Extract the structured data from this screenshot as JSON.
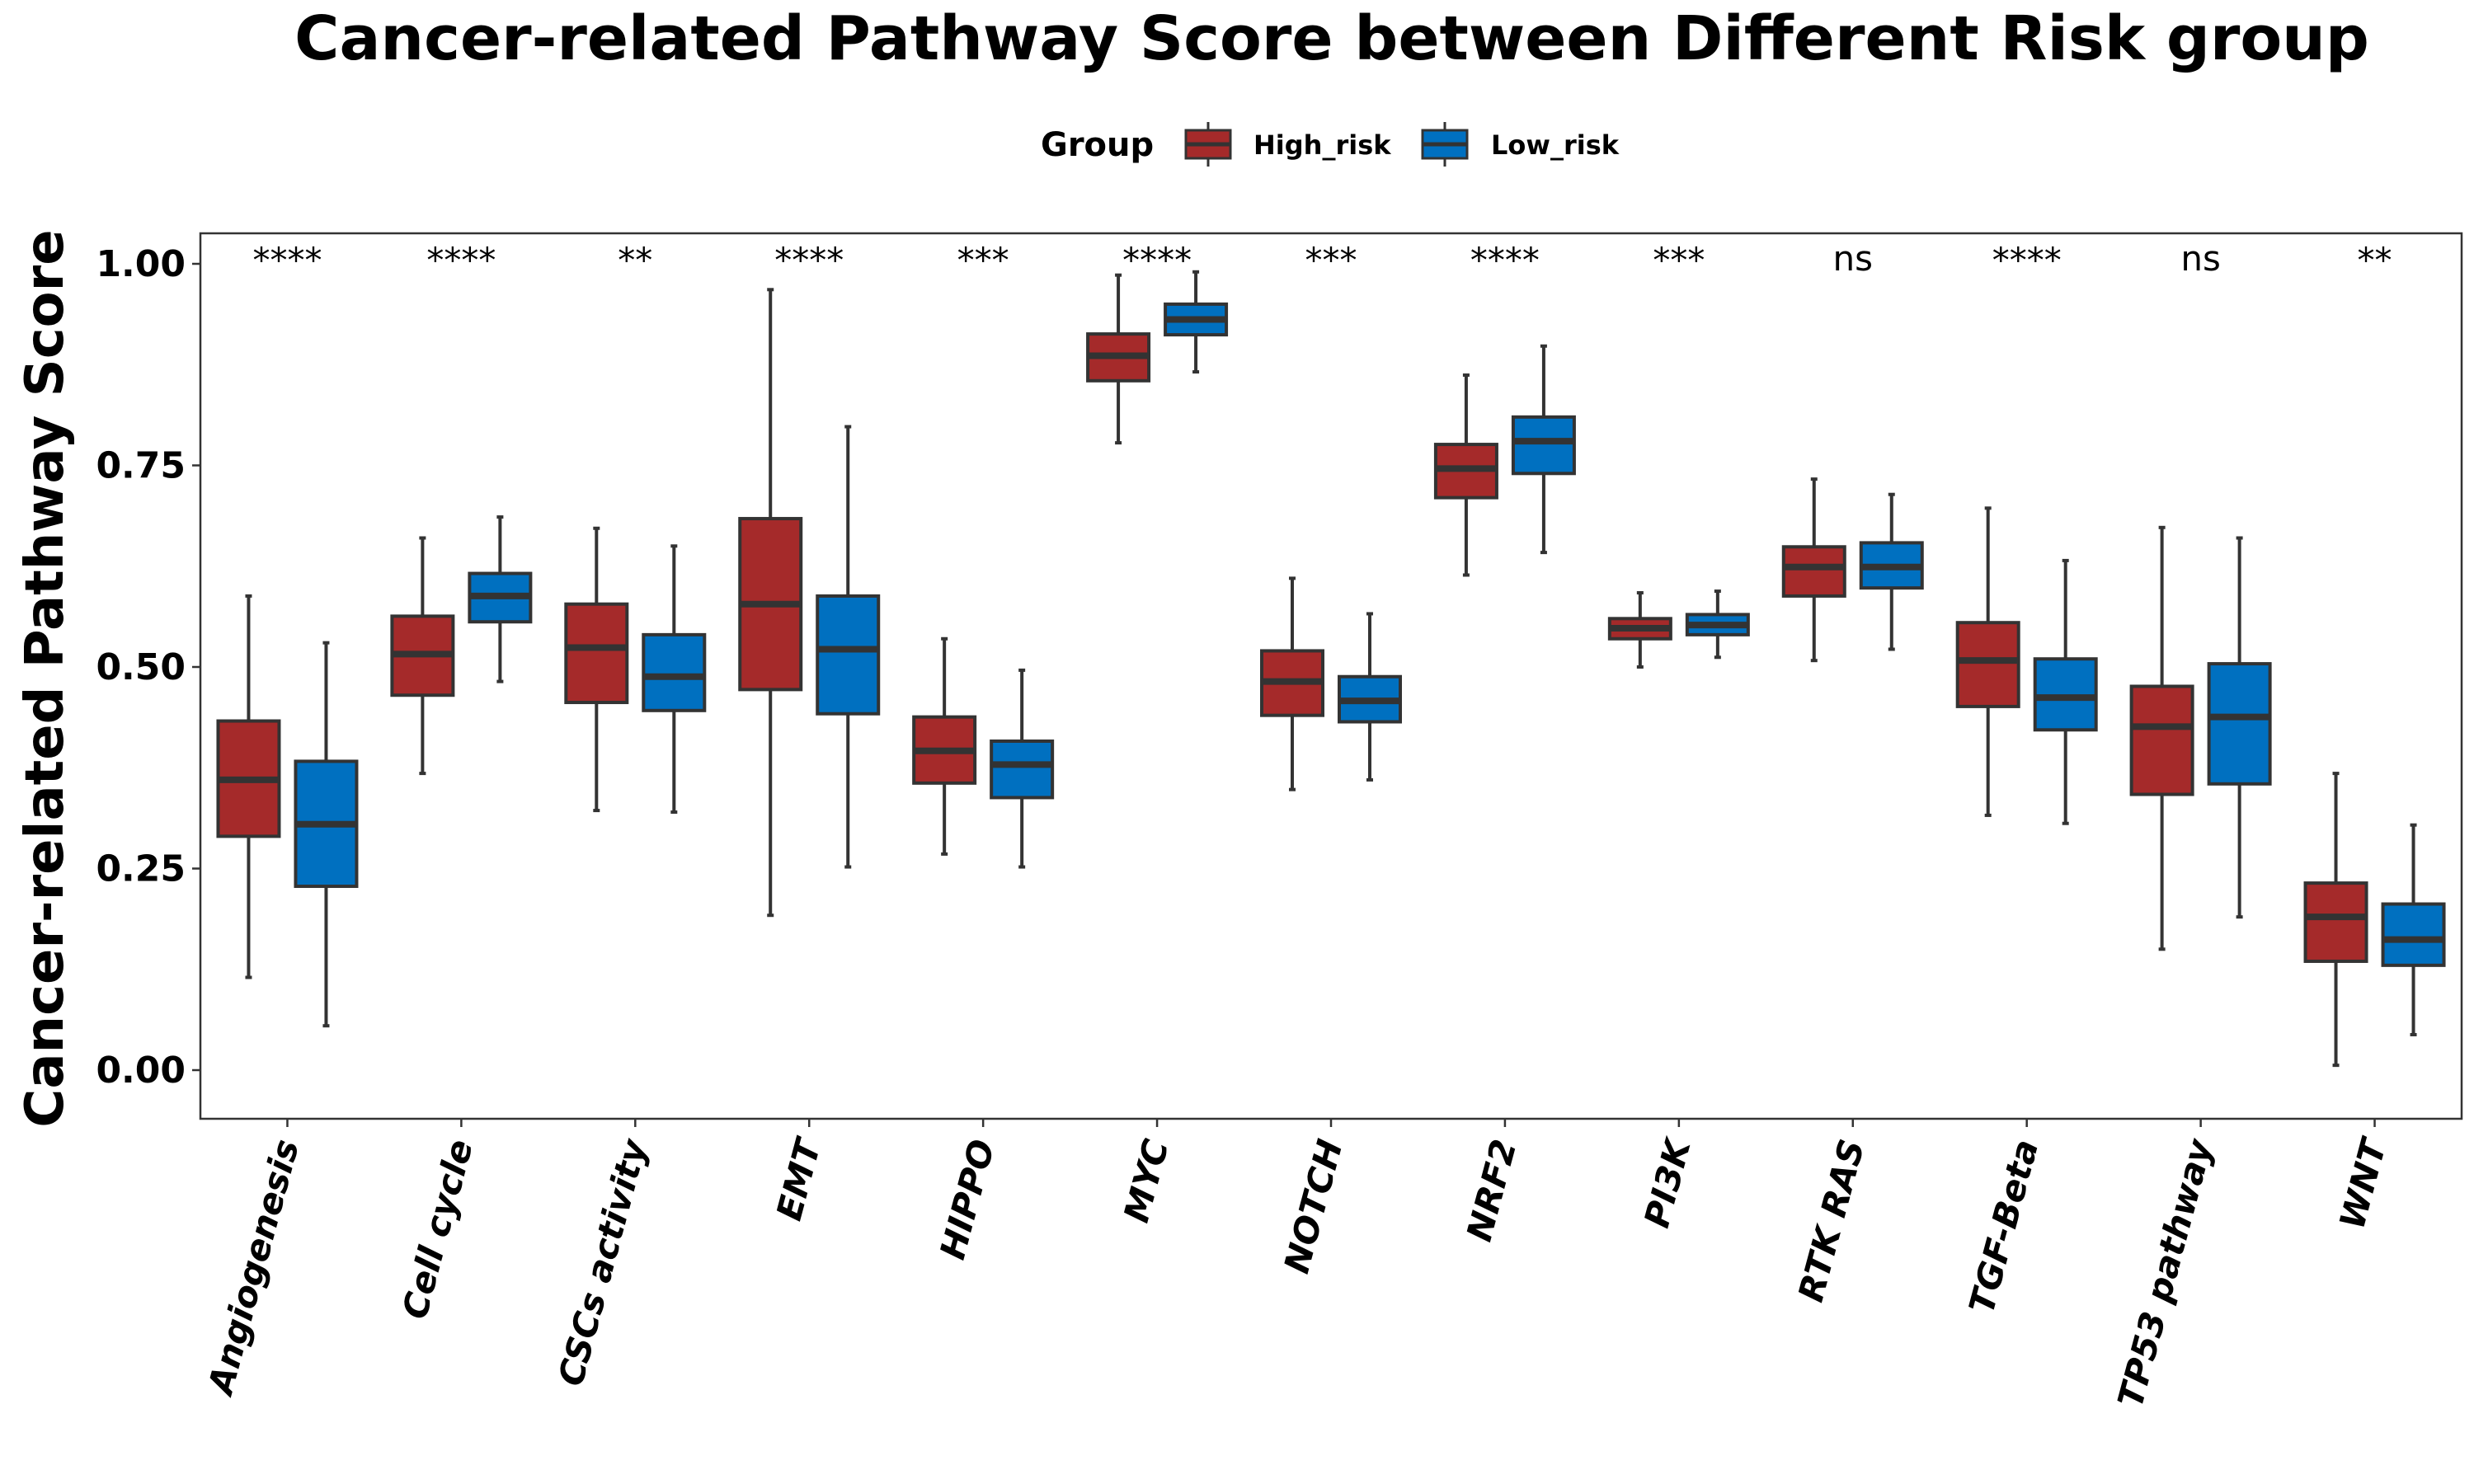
{
  "chart_data": {
    "type": "boxplot",
    "title": "Cancer-related Pathway Score between Different Risk group",
    "xlabel": "",
    "ylabel": "Cancer-related Pathway Score",
    "ylim": [
      -0.06,
      1.04
    ],
    "yticks": [
      "0.00",
      "0.25",
      "0.50",
      "0.75",
      "1.00"
    ],
    "ytick_values": [
      0,
      0.25,
      0.5,
      0.75,
      1.0
    ],
    "legend": {
      "title": "Group",
      "position": "top",
      "items": [
        {
          "label": "High_risk",
          "color": "#A52A2A"
        },
        {
          "label": "Low_risk",
          "color": "#0070C0"
        }
      ]
    },
    "categories": [
      "Angiogenesis",
      "Cell cycle",
      "CSCs activity",
      "EMT",
      "HIPPO",
      "MYC",
      "NOTCH",
      "NRF2",
      "PI3K",
      "RTK RAS",
      "TGF-Beta",
      "TP53 pathway",
      "WNT"
    ],
    "significance": [
      "****",
      "****",
      "**",
      "****",
      "***",
      "****",
      "***",
      "****",
      "***",
      "ns",
      "****",
      "ns",
      "**"
    ],
    "series": [
      {
        "name": "High_risk",
        "color": "#A52A2A",
        "boxes": [
          {
            "min": 0.115,
            "q1": 0.29,
            "median": 0.36,
            "q3": 0.433,
            "max": 0.588
          },
          {
            "min": 0.368,
            "q1": 0.465,
            "median": 0.516,
            "q3": 0.563,
            "max": 0.66
          },
          {
            "min": 0.322,
            "q1": 0.456,
            "median": 0.524,
            "q3": 0.578,
            "max": 0.672
          },
          {
            "min": 0.192,
            "q1": 0.472,
            "median": 0.578,
            "q3": 0.684,
            "max": 0.968
          },
          {
            "min": 0.268,
            "q1": 0.356,
            "median": 0.396,
            "q3": 0.438,
            "max": 0.535
          },
          {
            "min": 0.778,
            "q1": 0.855,
            "median": 0.886,
            "q3": 0.913,
            "max": 0.986
          },
          {
            "min": 0.348,
            "q1": 0.44,
            "median": 0.482,
            "q3": 0.52,
            "max": 0.61
          },
          {
            "min": 0.614,
            "q1": 0.71,
            "median": 0.746,
            "q3": 0.776,
            "max": 0.862
          },
          {
            "min": 0.5,
            "q1": 0.535,
            "median": 0.548,
            "q3": 0.56,
            "max": 0.592
          },
          {
            "min": 0.508,
            "q1": 0.588,
            "median": 0.624,
            "q3": 0.649,
            "max": 0.733
          },
          {
            "min": 0.316,
            "q1": 0.451,
            "median": 0.508,
            "q3": 0.555,
            "max": 0.697
          },
          {
            "min": 0.15,
            "q1": 0.342,
            "median": 0.426,
            "q3": 0.476,
            "max": 0.673
          },
          {
            "min": 0.006,
            "q1": 0.135,
            "median": 0.19,
            "q3": 0.232,
            "max": 0.368
          }
        ]
      },
      {
        "name": "Low_risk",
        "color": "#0070C0",
        "boxes": [
          {
            "min": 0.055,
            "q1": 0.228,
            "median": 0.305,
            "q3": 0.383,
            "max": 0.53
          },
          {
            "min": 0.482,
            "q1": 0.556,
            "median": 0.588,
            "q3": 0.616,
            "max": 0.686
          },
          {
            "min": 0.32,
            "q1": 0.446,
            "median": 0.488,
            "q3": 0.54,
            "max": 0.65
          },
          {
            "min": 0.252,
            "q1": 0.442,
            "median": 0.522,
            "q3": 0.588,
            "max": 0.798
          },
          {
            "min": 0.252,
            "q1": 0.338,
            "median": 0.379,
            "q3": 0.408,
            "max": 0.496
          },
          {
            "min": 0.866,
            "q1": 0.912,
            "median": 0.931,
            "q3": 0.95,
            "max": 0.99
          },
          {
            "min": 0.36,
            "q1": 0.432,
            "median": 0.458,
            "q3": 0.488,
            "max": 0.566
          },
          {
            "min": 0.642,
            "q1": 0.74,
            "median": 0.78,
            "q3": 0.81,
            "max": 0.898
          },
          {
            "min": 0.512,
            "q1": 0.54,
            "median": 0.552,
            "q3": 0.565,
            "max": 0.594
          },
          {
            "min": 0.522,
            "q1": 0.598,
            "median": 0.624,
            "q3": 0.654,
            "max": 0.714
          },
          {
            "min": 0.306,
            "q1": 0.422,
            "median": 0.462,
            "q3": 0.51,
            "max": 0.632
          },
          {
            "min": 0.19,
            "q1": 0.355,
            "median": 0.438,
            "q3": 0.504,
            "max": 0.66
          },
          {
            "min": 0.044,
            "q1": 0.13,
            "median": 0.162,
            "q3": 0.206,
            "max": 0.304
          }
        ]
      }
    ]
  }
}
